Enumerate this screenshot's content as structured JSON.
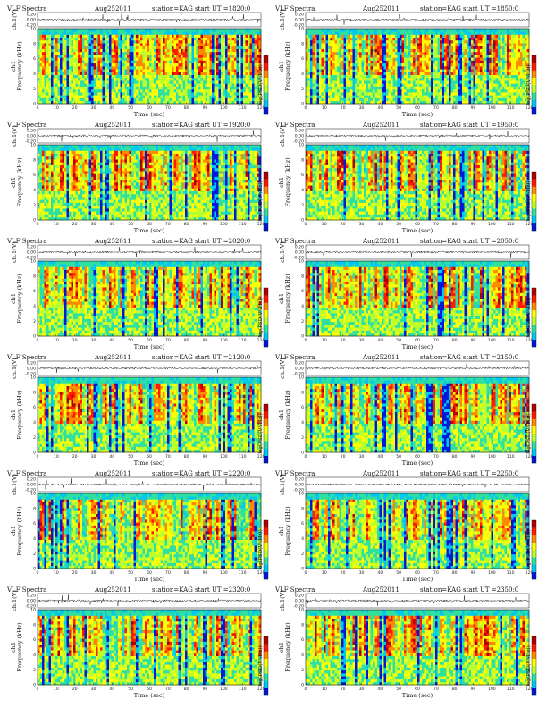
{
  "figure": {
    "title_prefix": "VLF Spectra",
    "date": "Aug252011",
    "station": "station=KAG",
    "start_label": "start UT =",
    "time_axis_label": "Time (sec)",
    "channel_label": "ch.1(V)",
    "freq_axis_label": "Frequency (kHz)",
    "freq_axis_ch_label": "ch1",
    "colorbar_label": "log(PSD(V²/Hz))",
    "colormap": [
      "#0018d8",
      "#00c8f0",
      "#30e0a0",
      "#b8ff30",
      "#ffff00",
      "#ff8a00",
      "#ff1a00",
      "#b00000"
    ]
  },
  "chart_data": [
    {
      "type": "heatmap",
      "start_ut": "1820:0",
      "x_ticks": [
        "0",
        "10",
        "20",
        "30",
        "40",
        "50",
        "60",
        "70",
        "80",
        "90",
        "100",
        "110",
        "120"
      ],
      "y_ticks": [
        "0",
        "2",
        "4",
        "6",
        "8",
        "10"
      ],
      "waveform_ticks": [
        "0.20",
        "0.00",
        "-0.20"
      ],
      "xlim": [
        0,
        120
      ],
      "ylim_khz": [
        0,
        10
      ]
    },
    {
      "type": "heatmap",
      "start_ut": "1850:0",
      "x_ticks": [
        "0",
        "10",
        "20",
        "30",
        "40",
        "50",
        "60",
        "70",
        "80",
        "90",
        "100",
        "110",
        "120"
      ],
      "y_ticks": [
        "0",
        "2",
        "4",
        "6",
        "8",
        "10"
      ],
      "waveform_ticks": [
        "0.20",
        "0.00",
        "-0.20"
      ],
      "xlim": [
        0,
        120
      ],
      "ylim_khz": [
        0,
        10
      ]
    },
    {
      "type": "heatmap",
      "start_ut": "1920:0",
      "x_ticks": [
        "0",
        "10",
        "20",
        "30",
        "40",
        "50",
        "60",
        "70",
        "80",
        "90",
        "100",
        "110",
        "120"
      ],
      "y_ticks": [
        "0",
        "2",
        "4",
        "6",
        "8",
        "10"
      ],
      "waveform_ticks": [
        "0.20",
        "0.00",
        "-0.20"
      ],
      "xlim": [
        0,
        120
      ],
      "ylim_khz": [
        0,
        10
      ]
    },
    {
      "type": "heatmap",
      "start_ut": "1950:0",
      "x_ticks": [
        "0",
        "10",
        "20",
        "30",
        "40",
        "50",
        "60",
        "70",
        "80",
        "90",
        "100",
        "110",
        "120"
      ],
      "y_ticks": [
        "0",
        "2",
        "4",
        "6",
        "8",
        "10"
      ],
      "waveform_ticks": [
        "0.20",
        "0.00",
        "-0.20"
      ],
      "xlim": [
        0,
        120
      ],
      "ylim_khz": [
        0,
        10
      ]
    },
    {
      "type": "heatmap",
      "start_ut": "2020:0",
      "x_ticks": [
        "0",
        "10",
        "20",
        "30",
        "40",
        "50",
        "60",
        "70",
        "80",
        "90",
        "100",
        "110",
        "120"
      ],
      "y_ticks": [
        "0",
        "2",
        "4",
        "6",
        "8",
        "10"
      ],
      "waveform_ticks": [
        "0.20",
        "0.00",
        "-0.20"
      ],
      "xlim": [
        0,
        120
      ],
      "ylim_khz": [
        0,
        10
      ]
    },
    {
      "type": "heatmap",
      "start_ut": "2050:0",
      "x_ticks": [
        "0",
        "10",
        "20",
        "30",
        "40",
        "50",
        "60",
        "70",
        "80",
        "90",
        "100",
        "110",
        "120"
      ],
      "y_ticks": [
        "0",
        "2",
        "4",
        "6",
        "8",
        "10"
      ],
      "waveform_ticks": [
        "0.20",
        "0.00",
        "-0.20"
      ],
      "xlim": [
        0,
        120
      ],
      "ylim_khz": [
        0,
        10
      ]
    },
    {
      "type": "heatmap",
      "start_ut": "2120:0",
      "x_ticks": [
        "0",
        "10",
        "20",
        "30",
        "40",
        "50",
        "60",
        "70",
        "80",
        "90",
        "100",
        "110",
        "120"
      ],
      "y_ticks": [
        "0",
        "2",
        "4",
        "6",
        "8",
        "10"
      ],
      "waveform_ticks": [
        "0.20",
        "0.00",
        "-0.20"
      ],
      "xlim": [
        0,
        120
      ],
      "ylim_khz": [
        0,
        10
      ]
    },
    {
      "type": "heatmap",
      "start_ut": "2150:0",
      "x_ticks": [
        "0",
        "10",
        "20",
        "30",
        "40",
        "50",
        "60",
        "70",
        "80",
        "90",
        "100",
        "110",
        "120"
      ],
      "y_ticks": [
        "0",
        "2",
        "4",
        "6",
        "8",
        "10"
      ],
      "waveform_ticks": [
        "0.20",
        "0.00",
        "-0.20"
      ],
      "xlim": [
        0,
        120
      ],
      "ylim_khz": [
        0,
        10
      ]
    },
    {
      "type": "heatmap",
      "start_ut": "2220:0",
      "x_ticks": [
        "0",
        "10",
        "20",
        "30",
        "40",
        "50",
        "60",
        "70",
        "80",
        "90",
        "100",
        "110",
        "120"
      ],
      "y_ticks": [
        "0",
        "2",
        "4",
        "6",
        "8",
        "10"
      ],
      "waveform_ticks": [
        "0.20",
        "0.00",
        "-0.20"
      ],
      "xlim": [
        0,
        120
      ],
      "ylim_khz": [
        0,
        10
      ]
    },
    {
      "type": "heatmap",
      "start_ut": "2250:0",
      "x_ticks": [
        "0",
        "10",
        "20",
        "30",
        "40",
        "50",
        "60",
        "70",
        "80",
        "90",
        "100",
        "110",
        "120"
      ],
      "y_ticks": [
        "0",
        "2",
        "4",
        "6",
        "8",
        "10"
      ],
      "waveform_ticks": [
        "0.20",
        "0.00",
        "-0.20"
      ],
      "xlim": [
        0,
        120
      ],
      "ylim_khz": [
        0,
        10
      ]
    },
    {
      "type": "heatmap",
      "start_ut": "2320:0",
      "x_ticks": [
        "0",
        "10",
        "20",
        "30",
        "40",
        "50",
        "60",
        "70",
        "80",
        "90",
        "100",
        "110",
        "120"
      ],
      "y_ticks": [
        "0",
        "2",
        "4",
        "6",
        "8",
        "10"
      ],
      "waveform_ticks": [
        "0.20",
        "0.00",
        "-0.20"
      ],
      "xlim": [
        0,
        120
      ],
      "ylim_khz": [
        0,
        10
      ]
    },
    {
      "type": "heatmap",
      "start_ut": "2350:0",
      "x_ticks": [
        "0",
        "10",
        "20",
        "30",
        "40",
        "50",
        "60",
        "70",
        "80",
        "90",
        "100",
        "110",
        "120"
      ],
      "y_ticks": [
        "0",
        "2",
        "4",
        "6",
        "8",
        "10"
      ],
      "waveform_ticks": [
        "0.20",
        "0.00",
        "-0.20"
      ],
      "xlim": [
        0,
        120
      ],
      "ylim_khz": [
        0,
        10
      ]
    }
  ]
}
